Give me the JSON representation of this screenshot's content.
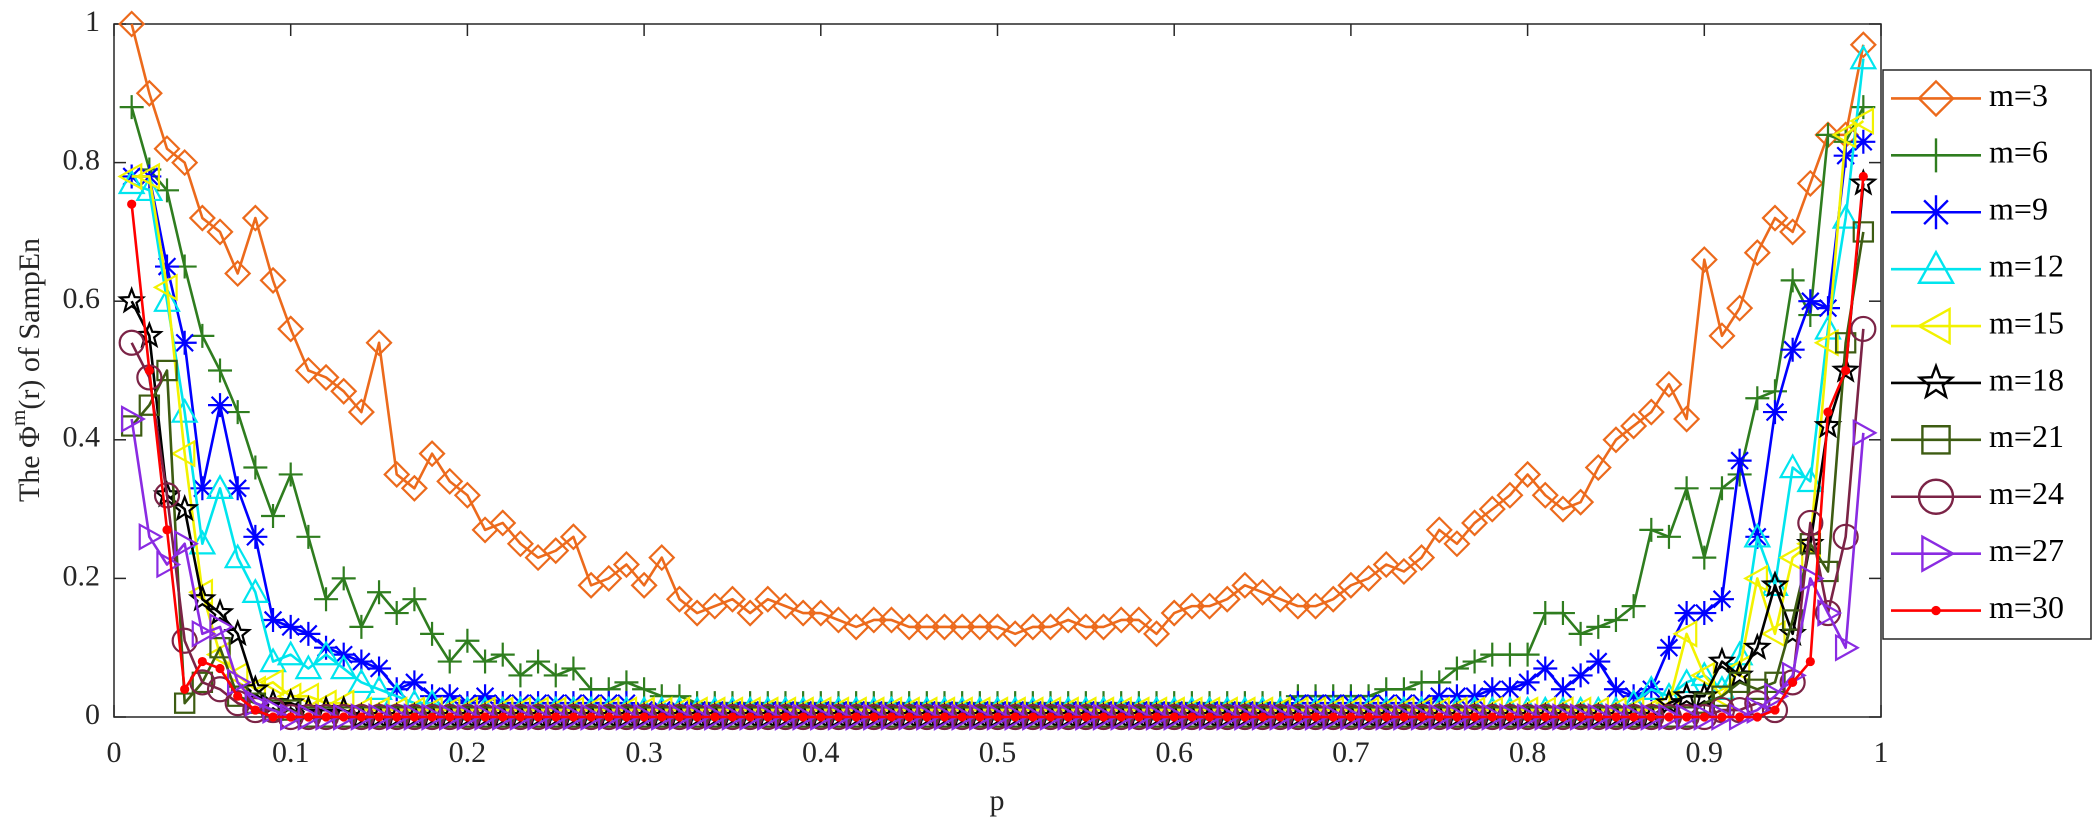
{
  "chart_data": {
    "type": "line",
    "ylabel": [
      "The Φ",
      "m",
      "(r) of SampEn"
    ],
    "xlabel": "p",
    "xlim": [
      0,
      1
    ],
    "ylim": [
      0,
      1
    ],
    "xticks": [
      0,
      0.1,
      0.2,
      0.3,
      0.4,
      0.5,
      0.6,
      0.7,
      0.8,
      0.9,
      1
    ],
    "yticks": [
      0,
      0.2,
      0.4,
      0.6,
      0.8,
      1
    ],
    "grid": false,
    "legend": "right",
    "x": [
      0.01,
      0.02,
      0.03,
      0.04,
      0.05,
      0.06,
      0.07,
      0.08,
      0.09,
      0.1,
      0.11,
      0.12,
      0.13,
      0.14,
      0.15,
      0.16,
      0.17,
      0.18,
      0.19,
      0.2,
      0.21,
      0.22,
      0.23,
      0.24,
      0.25,
      0.26,
      0.27,
      0.28,
      0.29,
      0.3,
      0.31,
      0.32,
      0.33,
      0.34,
      0.35,
      0.36,
      0.37,
      0.38,
      0.39,
      0.4,
      0.41,
      0.42,
      0.43,
      0.44,
      0.45,
      0.46,
      0.47,
      0.48,
      0.49,
      0.5,
      0.51,
      0.52,
      0.53,
      0.54,
      0.55,
      0.56,
      0.57,
      0.58,
      0.59,
      0.6,
      0.61,
      0.62,
      0.63,
      0.64,
      0.65,
      0.66,
      0.67,
      0.68,
      0.69,
      0.7,
      0.71,
      0.72,
      0.73,
      0.74,
      0.75,
      0.76,
      0.77,
      0.78,
      0.79,
      0.8,
      0.81,
      0.82,
      0.83,
      0.84,
      0.85,
      0.86,
      0.87,
      0.88,
      0.89,
      0.9,
      0.91,
      0.92,
      0.93,
      0.94,
      0.95,
      0.96,
      0.97,
      0.98,
      0.99
    ],
    "series": [
      {
        "name": "m=3",
        "color": "#ec6a1c",
        "marker": "diamond",
        "values": [
          1.0,
          0.9,
          0.82,
          0.8,
          0.72,
          0.7,
          0.64,
          0.72,
          0.63,
          0.56,
          0.5,
          0.49,
          0.47,
          0.44,
          0.54,
          0.35,
          0.33,
          0.38,
          0.34,
          0.32,
          0.27,
          0.28,
          0.25,
          0.23,
          0.24,
          0.26,
          0.19,
          0.2,
          0.22,
          0.19,
          0.23,
          0.17,
          0.15,
          0.16,
          0.17,
          0.15,
          0.17,
          0.16,
          0.15,
          0.15,
          0.14,
          0.13,
          0.14,
          0.14,
          0.13,
          0.13,
          0.13,
          0.13,
          0.13,
          0.13,
          0.12,
          0.13,
          0.13,
          0.14,
          0.13,
          0.13,
          0.14,
          0.14,
          0.12,
          0.15,
          0.16,
          0.16,
          0.17,
          0.19,
          0.18,
          0.17,
          0.16,
          0.16,
          0.17,
          0.19,
          0.2,
          0.22,
          0.21,
          0.23,
          0.27,
          0.25,
          0.28,
          0.3,
          0.32,
          0.35,
          0.32,
          0.3,
          0.31,
          0.36,
          0.4,
          0.42,
          0.44,
          0.48,
          0.43,
          0.66,
          0.55,
          0.59,
          0.67,
          0.72,
          0.7,
          0.77,
          0.84,
          0.84,
          0.97
        ]
      },
      {
        "name": "m=6",
        "color": "#2f7d1f",
        "marker": "plus",
        "values": [
          0.88,
          0.79,
          0.76,
          0.65,
          0.55,
          0.5,
          0.44,
          0.36,
          0.29,
          0.35,
          0.26,
          0.17,
          0.2,
          0.13,
          0.18,
          0.15,
          0.17,
          0.12,
          0.08,
          0.11,
          0.08,
          0.09,
          0.06,
          0.08,
          0.06,
          0.07,
          0.04,
          0.04,
          0.05,
          0.04,
          0.03,
          0.03,
          0.02,
          0.02,
          0.02,
          0.02,
          0.02,
          0.02,
          0.02,
          0.02,
          0.02,
          0.02,
          0.02,
          0.02,
          0.02,
          0.02,
          0.02,
          0.02,
          0.02,
          0.02,
          0.02,
          0.02,
          0.02,
          0.02,
          0.02,
          0.02,
          0.02,
          0.02,
          0.02,
          0.02,
          0.02,
          0.02,
          0.02,
          0.02,
          0.02,
          0.02,
          0.03,
          0.03,
          0.03,
          0.03,
          0.03,
          0.04,
          0.04,
          0.05,
          0.05,
          0.07,
          0.08,
          0.09,
          0.09,
          0.09,
          0.15,
          0.15,
          0.12,
          0.13,
          0.14,
          0.16,
          0.27,
          0.26,
          0.33,
          0.23,
          0.33,
          0.35,
          0.46,
          0.47,
          0.63,
          0.58,
          0.84,
          0.83,
          0.88
        ]
      },
      {
        "name": "m=9",
        "color": "#0000ff",
        "marker": "asterisk",
        "values": [
          0.78,
          0.78,
          0.65,
          0.54,
          0.33,
          0.45,
          0.33,
          0.26,
          0.14,
          0.13,
          0.12,
          0.1,
          0.09,
          0.08,
          0.07,
          0.04,
          0.05,
          0.03,
          0.03,
          0.02,
          0.03,
          0.02,
          0.02,
          0.02,
          0.02,
          0.02,
          0.02,
          0.02,
          0.02,
          0.01,
          0.01,
          0.01,
          0.01,
          0.01,
          0.01,
          0.01,
          0.01,
          0.01,
          0.01,
          0.01,
          0.01,
          0.01,
          0.01,
          0.01,
          0.01,
          0.01,
          0.01,
          0.01,
          0.01,
          0.01,
          0.01,
          0.01,
          0.01,
          0.01,
          0.01,
          0.01,
          0.01,
          0.01,
          0.01,
          0.01,
          0.01,
          0.01,
          0.01,
          0.01,
          0.01,
          0.01,
          0.02,
          0.02,
          0.02,
          0.02,
          0.02,
          0.02,
          0.02,
          0.02,
          0.03,
          0.03,
          0.03,
          0.04,
          0.04,
          0.05,
          0.07,
          0.04,
          0.06,
          0.08,
          0.04,
          0.03,
          0.04,
          0.1,
          0.15,
          0.15,
          0.17,
          0.37,
          0.26,
          0.44,
          0.53,
          0.6,
          0.59,
          0.81,
          0.83
        ]
      },
      {
        "name": "m=12",
        "color": "#00e5ee",
        "marker": "triangle-up",
        "values": [
          0.77,
          0.76,
          0.6,
          0.44,
          0.25,
          0.33,
          0.23,
          0.18,
          0.08,
          0.09,
          0.07,
          0.09,
          0.07,
          0.05,
          0.04,
          0.03,
          0.02,
          0.02,
          0.01,
          0.01,
          0.01,
          0.01,
          0.01,
          0.01,
          0.01,
          0.01,
          0.01,
          0.01,
          0.01,
          0.01,
          0.01,
          0.01,
          0.01,
          0.01,
          0.01,
          0.01,
          0.01,
          0.01,
          0.01,
          0.01,
          0.01,
          0.01,
          0.01,
          0.01,
          0.01,
          0.01,
          0.01,
          0.01,
          0.01,
          0.01,
          0.01,
          0.01,
          0.01,
          0.01,
          0.01,
          0.01,
          0.01,
          0.01,
          0.01,
          0.01,
          0.01,
          0.01,
          0.01,
          0.01,
          0.01,
          0.01,
          0.01,
          0.01,
          0.01,
          0.01,
          0.01,
          0.01,
          0.01,
          0.01,
          0.01,
          0.01,
          0.01,
          0.01,
          0.01,
          0.01,
          0.01,
          0.01,
          0.01,
          0.01,
          0.01,
          0.02,
          0.04,
          0.03,
          0.05,
          0.06,
          0.04,
          0.09,
          0.26,
          0.19,
          0.36,
          0.34,
          0.56,
          0.72,
          0.95
        ]
      },
      {
        "name": "m=15",
        "color": "#f2f200",
        "marker": "triangle-left",
        "values": [
          0.78,
          0.78,
          0.62,
          0.38,
          0.18,
          0.09,
          0.06,
          0.04,
          0.05,
          0.03,
          0.03,
          0.02,
          0.02,
          0.01,
          0.01,
          0.01,
          0.01,
          0.01,
          0.01,
          0.01,
          0.01,
          0.01,
          0.01,
          0.01,
          0.01,
          0.01,
          0.01,
          0.01,
          0.01,
          0.01,
          0.01,
          0.01,
          0.01,
          0.01,
          0.01,
          0.01,
          0.01,
          0.01,
          0.01,
          0.01,
          0.01,
          0.01,
          0.01,
          0.01,
          0.01,
          0.01,
          0.01,
          0.01,
          0.01,
          0.01,
          0.01,
          0.01,
          0.01,
          0.01,
          0.01,
          0.01,
          0.01,
          0.01,
          0.01,
          0.01,
          0.01,
          0.01,
          0.01,
          0.01,
          0.01,
          0.01,
          0.01,
          0.01,
          0.01,
          0.01,
          0.01,
          0.01,
          0.01,
          0.01,
          0.01,
          0.01,
          0.01,
          0.01,
          0.01,
          0.01,
          0.01,
          0.01,
          0.01,
          0.01,
          0.01,
          0.01,
          0.01,
          0.02,
          0.12,
          0.06,
          0.03,
          0.07,
          0.2,
          0.12,
          0.23,
          0.25,
          0.54,
          0.84,
          0.86
        ]
      },
      {
        "name": "m=18",
        "color": "#000000",
        "marker": "pentagram",
        "values": [
          0.6,
          0.55,
          0.32,
          0.3,
          0.17,
          0.15,
          0.12,
          0.04,
          0.02,
          0.02,
          0.01,
          0.01,
          0.01,
          0,
          0,
          0,
          0,
          0,
          0,
          0,
          0,
          0,
          0,
          0,
          0,
          0,
          0,
          0,
          0,
          0,
          0,
          0,
          0,
          0,
          0,
          0,
          0,
          0,
          0,
          0,
          0,
          0,
          0,
          0,
          0,
          0,
          0,
          0,
          0,
          0,
          0,
          0,
          0,
          0,
          0,
          0,
          0,
          0,
          0,
          0,
          0,
          0,
          0,
          0,
          0,
          0,
          0,
          0,
          0,
          0,
          0,
          0,
          0,
          0,
          0,
          0,
          0,
          0,
          0,
          0,
          0,
          0,
          0,
          0,
          0,
          0,
          0,
          0.02,
          0.03,
          0.03,
          0.08,
          0.06,
          0.1,
          0.19,
          0.12,
          0.25,
          0.42,
          0.5,
          0.77
        ]
      },
      {
        "name": "m=21",
        "color": "#3d5c12",
        "marker": "square",
        "values": [
          0.42,
          0.45,
          0.5,
          0.02,
          0.05,
          0.1,
          0.03,
          0.02,
          0.01,
          0.01,
          0,
          0,
          0,
          0,
          0,
          0,
          0,
          0,
          0,
          0,
          0,
          0,
          0,
          0,
          0,
          0,
          0,
          0,
          0,
          0,
          0,
          0,
          0,
          0,
          0,
          0,
          0,
          0,
          0,
          0,
          0,
          0,
          0,
          0,
          0,
          0,
          0,
          0,
          0,
          0,
          0,
          0,
          0,
          0,
          0,
          0,
          0,
          0,
          0,
          0,
          0,
          0,
          0,
          0,
          0,
          0,
          0,
          0,
          0,
          0,
          0,
          0,
          0,
          0,
          0,
          0,
          0,
          0,
          0,
          0,
          0,
          0,
          0,
          0,
          0,
          0,
          0,
          0,
          0,
          0.02,
          0.03,
          0.05,
          0.04,
          0.05,
          0.14,
          0.25,
          0.21,
          0.54,
          0.7
        ]
      },
      {
        "name": "m=24",
        "color": "#7b2346",
        "marker": "circle",
        "values": [
          0.54,
          0.49,
          0.32,
          0.11,
          0.05,
          0.04,
          0.02,
          0.01,
          0.01,
          0,
          0,
          0,
          0,
          0,
          0,
          0,
          0,
          0,
          0,
          0,
          0,
          0,
          0,
          0,
          0,
          0,
          0,
          0,
          0,
          0,
          0,
          0,
          0,
          0,
          0,
          0,
          0,
          0,
          0,
          0,
          0,
          0,
          0,
          0,
          0,
          0,
          0,
          0,
          0,
          0,
          0,
          0,
          0,
          0,
          0,
          0,
          0,
          0,
          0,
          0,
          0,
          0,
          0,
          0,
          0,
          0,
          0,
          0,
          0,
          0,
          0,
          0,
          0,
          0,
          0,
          0,
          0,
          0,
          0,
          0,
          0,
          0,
          0,
          0,
          0,
          0,
          0,
          0,
          0,
          0,
          0.01,
          0.01,
          0.02,
          0.01,
          0.05,
          0.28,
          0.15,
          0.26,
          0.56
        ]
      },
      {
        "name": "m=27",
        "color": "#8a2be2",
        "marker": "triangle-right",
        "values": [
          0.43,
          0.26,
          0.22,
          0.25,
          0.12,
          0.13,
          0.05,
          0.02,
          0.01,
          0,
          0,
          0,
          0,
          0,
          0,
          0,
          0,
          0,
          0,
          0,
          0,
          0,
          0,
          0,
          0,
          0,
          0,
          0,
          0,
          0,
          0,
          0,
          0,
          0,
          0,
          0,
          0,
          0,
          0,
          0,
          0,
          0,
          0,
          0,
          0,
          0,
          0,
          0,
          0,
          0,
          0,
          0,
          0,
          0,
          0,
          0,
          0,
          0,
          0,
          0,
          0,
          0,
          0,
          0,
          0,
          0,
          0,
          0,
          0,
          0,
          0,
          0,
          0,
          0,
          0,
          0,
          0,
          0,
          0,
          0,
          0,
          0,
          0,
          0,
          0,
          0,
          0,
          0,
          0,
          0,
          0,
          0,
          0.01,
          0.03,
          0.06,
          0.2,
          0.15,
          0.1,
          0.41
        ]
      },
      {
        "name": "m=30",
        "color": "#ff0000",
        "marker": "dot",
        "values": [
          0.74,
          0.5,
          0.27,
          0.04,
          0.08,
          0.07,
          0.03,
          0.01,
          0,
          0,
          0,
          0,
          0,
          0,
          0,
          0,
          0,
          0,
          0,
          0,
          0,
          0,
          0,
          0,
          0,
          0,
          0,
          0,
          0,
          0,
          0,
          0,
          0,
          0,
          0,
          0,
          0,
          0,
          0,
          0,
          0,
          0,
          0,
          0,
          0,
          0,
          0,
          0,
          0,
          0,
          0,
          0,
          0,
          0,
          0,
          0,
          0,
          0,
          0,
          0,
          0,
          0,
          0,
          0,
          0,
          0,
          0,
          0,
          0,
          0,
          0,
          0,
          0,
          0,
          0,
          0,
          0,
          0,
          0,
          0,
          0,
          0,
          0,
          0,
          0,
          0,
          0,
          0,
          0,
          0,
          0,
          0,
          0,
          0.01,
          0.05,
          0.08,
          0.44,
          0.5,
          0.78
        ]
      }
    ]
  }
}
